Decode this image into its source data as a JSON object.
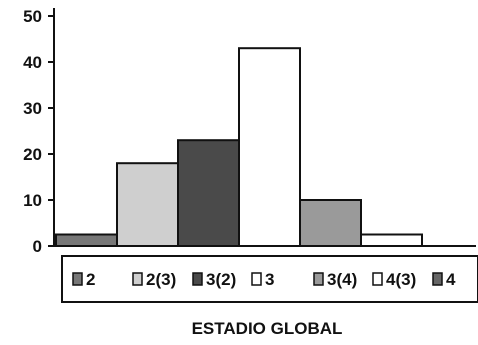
{
  "chart_data": {
    "type": "bar",
    "title": "",
    "xlabel": "ESTADIO GLOBAL",
    "ylabel": "",
    "ylim": [
      0,
      50
    ],
    "yticks": [
      0,
      10,
      20,
      30,
      40,
      50
    ],
    "grid": false,
    "legend_position": "bottom",
    "categories": [
      "2",
      "2(3)",
      "3(2)",
      "3",
      "3(4)",
      "4(3)",
      "4"
    ],
    "values": [
      2.5,
      18,
      23,
      43,
      10,
      2.5,
      0
    ],
    "colors": [
      "#777777",
      "#cfcfcf",
      "#4a4a4a",
      "#ffffff",
      "#9a9a9a",
      "#ffffff",
      "#666666"
    ]
  }
}
